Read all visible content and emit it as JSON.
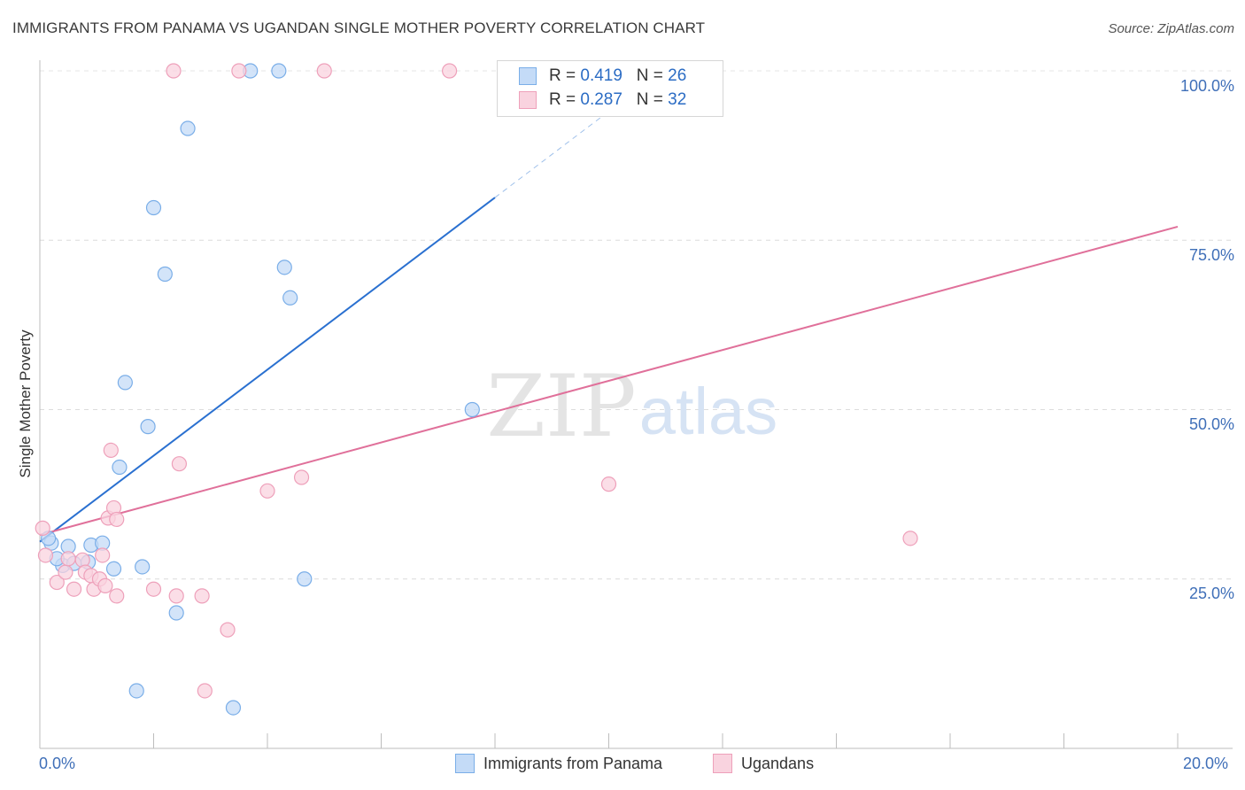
{
  "chart_data": {
    "type": "scatter",
    "title": "IMMIGRANTS FROM PANAMA VS UGANDAN SINGLE MOTHER POVERTY CORRELATION CHART",
    "source": "Source: ZipAtlas.com",
    "ylabel": "Single Mother Poverty",
    "xlim": [
      0,
      20
    ],
    "ylim": [
      0,
      100
    ],
    "x_tick_labels": {
      "min": "0.0%",
      "max": "20.0%"
    },
    "y_tick_labels": [
      {
        "value": 100,
        "label": "100.0%"
      },
      {
        "value": 75,
        "label": "75.0%"
      },
      {
        "value": 50,
        "label": "50.0%"
      },
      {
        "value": 25,
        "label": "25.0%"
      }
    ],
    "watermark": {
      "zip": "ZIP",
      "atlas": "atlas"
    },
    "series": [
      {
        "name": "Immigrants from Panama",
        "color": "#7aaee8",
        "fill": "#c4dbf7",
        "line_color": "#2a70d0",
        "R": "0.419",
        "N": "26",
        "trend": {
          "x0": 0.0,
          "y0": 30.5,
          "x1": 8.0,
          "y1": 81.3,
          "dash_to_x": 10.5,
          "dash_to_y": 97.2
        },
        "points": [
          {
            "x": 0.2,
            "y": 30.3
          },
          {
            "x": 0.4,
            "y": 27.0
          },
          {
            "x": 0.5,
            "y": 29.8
          },
          {
            "x": 0.6,
            "y": 27.3
          },
          {
            "x": 0.9,
            "y": 30.0
          },
          {
            "x": 1.1,
            "y": 30.3
          },
          {
            "x": 0.85,
            "y": 27.5
          },
          {
            "x": 1.3,
            "y": 26.5
          },
          {
            "x": 1.4,
            "y": 41.5
          },
          {
            "x": 1.5,
            "y": 54.0
          },
          {
            "x": 1.8,
            "y": 26.8
          },
          {
            "x": 1.9,
            "y": 47.5
          },
          {
            "x": 2.0,
            "y": 79.8
          },
          {
            "x": 2.2,
            "y": 70.0
          },
          {
            "x": 2.4,
            "y": 20.0
          },
          {
            "x": 2.6,
            "y": 91.5
          },
          {
            "x": 1.7,
            "y": 8.5
          },
          {
            "x": 3.4,
            "y": 6.0
          },
          {
            "x": 3.7,
            "y": 100.0
          },
          {
            "x": 4.2,
            "y": 100.0
          },
          {
            "x": 4.3,
            "y": 71.0
          },
          {
            "x": 4.4,
            "y": 66.5
          },
          {
            "x": 4.65,
            "y": 25.0
          },
          {
            "x": 7.6,
            "y": 50.0
          },
          {
            "x": 0.15,
            "y": 31.0
          },
          {
            "x": 0.3,
            "y": 28.0
          }
        ]
      },
      {
        "name": "Ugandans",
        "color": "#eea0ba",
        "fill": "#f9d3df",
        "line_color": "#e0709a",
        "R": "0.287",
        "N": "32",
        "trend": {
          "x0": 0.0,
          "y0": 31.5,
          "x1": 20.0,
          "y1": 77.0
        },
        "points": [
          {
            "x": 0.05,
            "y": 32.5
          },
          {
            "x": 0.1,
            "y": 28.5
          },
          {
            "x": 0.3,
            "y": 24.5
          },
          {
            "x": 0.45,
            "y": 26.0
          },
          {
            "x": 0.5,
            "y": 28.0
          },
          {
            "x": 0.6,
            "y": 23.5
          },
          {
            "x": 0.75,
            "y": 27.8
          },
          {
            "x": 0.8,
            "y": 26.0
          },
          {
            "x": 0.9,
            "y": 25.5
          },
          {
            "x": 0.95,
            "y": 23.5
          },
          {
            "x": 1.05,
            "y": 25.0
          },
          {
            "x": 1.1,
            "y": 28.5
          },
          {
            "x": 1.2,
            "y": 34.0
          },
          {
            "x": 1.15,
            "y": 24.0
          },
          {
            "x": 1.25,
            "y": 44.0
          },
          {
            "x": 1.3,
            "y": 35.5
          },
          {
            "x": 1.35,
            "y": 33.8
          },
          {
            "x": 1.35,
            "y": 22.5
          },
          {
            "x": 2.0,
            "y": 23.5
          },
          {
            "x": 2.35,
            "y": 100.0
          },
          {
            "x": 2.4,
            "y": 22.5
          },
          {
            "x": 2.45,
            "y": 42.0
          },
          {
            "x": 2.85,
            "y": 22.5
          },
          {
            "x": 2.9,
            "y": 8.5
          },
          {
            "x": 3.3,
            "y": 17.5
          },
          {
            "x": 3.5,
            "y": 100.0
          },
          {
            "x": 4.0,
            "y": 38.0
          },
          {
            "x": 4.6,
            "y": 40.0
          },
          {
            "x": 5.0,
            "y": 100.0
          },
          {
            "x": 7.2,
            "y": 100.0
          },
          {
            "x": 10.0,
            "y": 39.0
          },
          {
            "x": 15.3,
            "y": 31.0
          }
        ]
      }
    ]
  }
}
